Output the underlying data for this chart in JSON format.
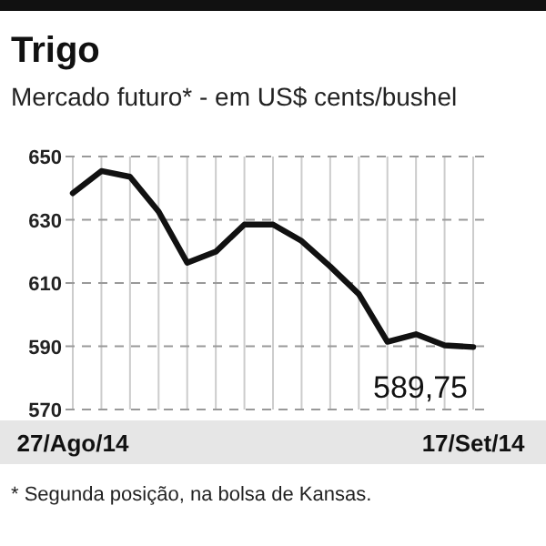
{
  "chart_data": {
    "type": "line",
    "title": "Trigo",
    "subtitle": "Mercado futuro* - em US$ cents/bushel",
    "categories": [
      "27/Ago/14",
      null,
      null,
      null,
      null,
      null,
      null,
      null,
      null,
      null,
      null,
      null,
      null,
      null,
      "17/Set/14"
    ],
    "series": [
      {
        "color": "#111111",
        "values": [
          638.4,
          645.4,
          643.6,
          632.6,
          616.4,
          619.9,
          628.5,
          628.5,
          623.3,
          615.2,
          606.5,
          591.4,
          593.8,
          590.3,
          589.75
        ],
        "value_labels": [
          null,
          null,
          null,
          null,
          null,
          null,
          null,
          null,
          null,
          null,
          null,
          null,
          null,
          null,
          "589,75"
        ]
      }
    ],
    "ylim": [
      570,
      650
    ],
    "yticks": [
      570,
      590,
      610,
      630,
      650
    ],
    "grid": true,
    "annotations": [
      "* Segunda posição, na bolsa de Kansas."
    ]
  }
}
